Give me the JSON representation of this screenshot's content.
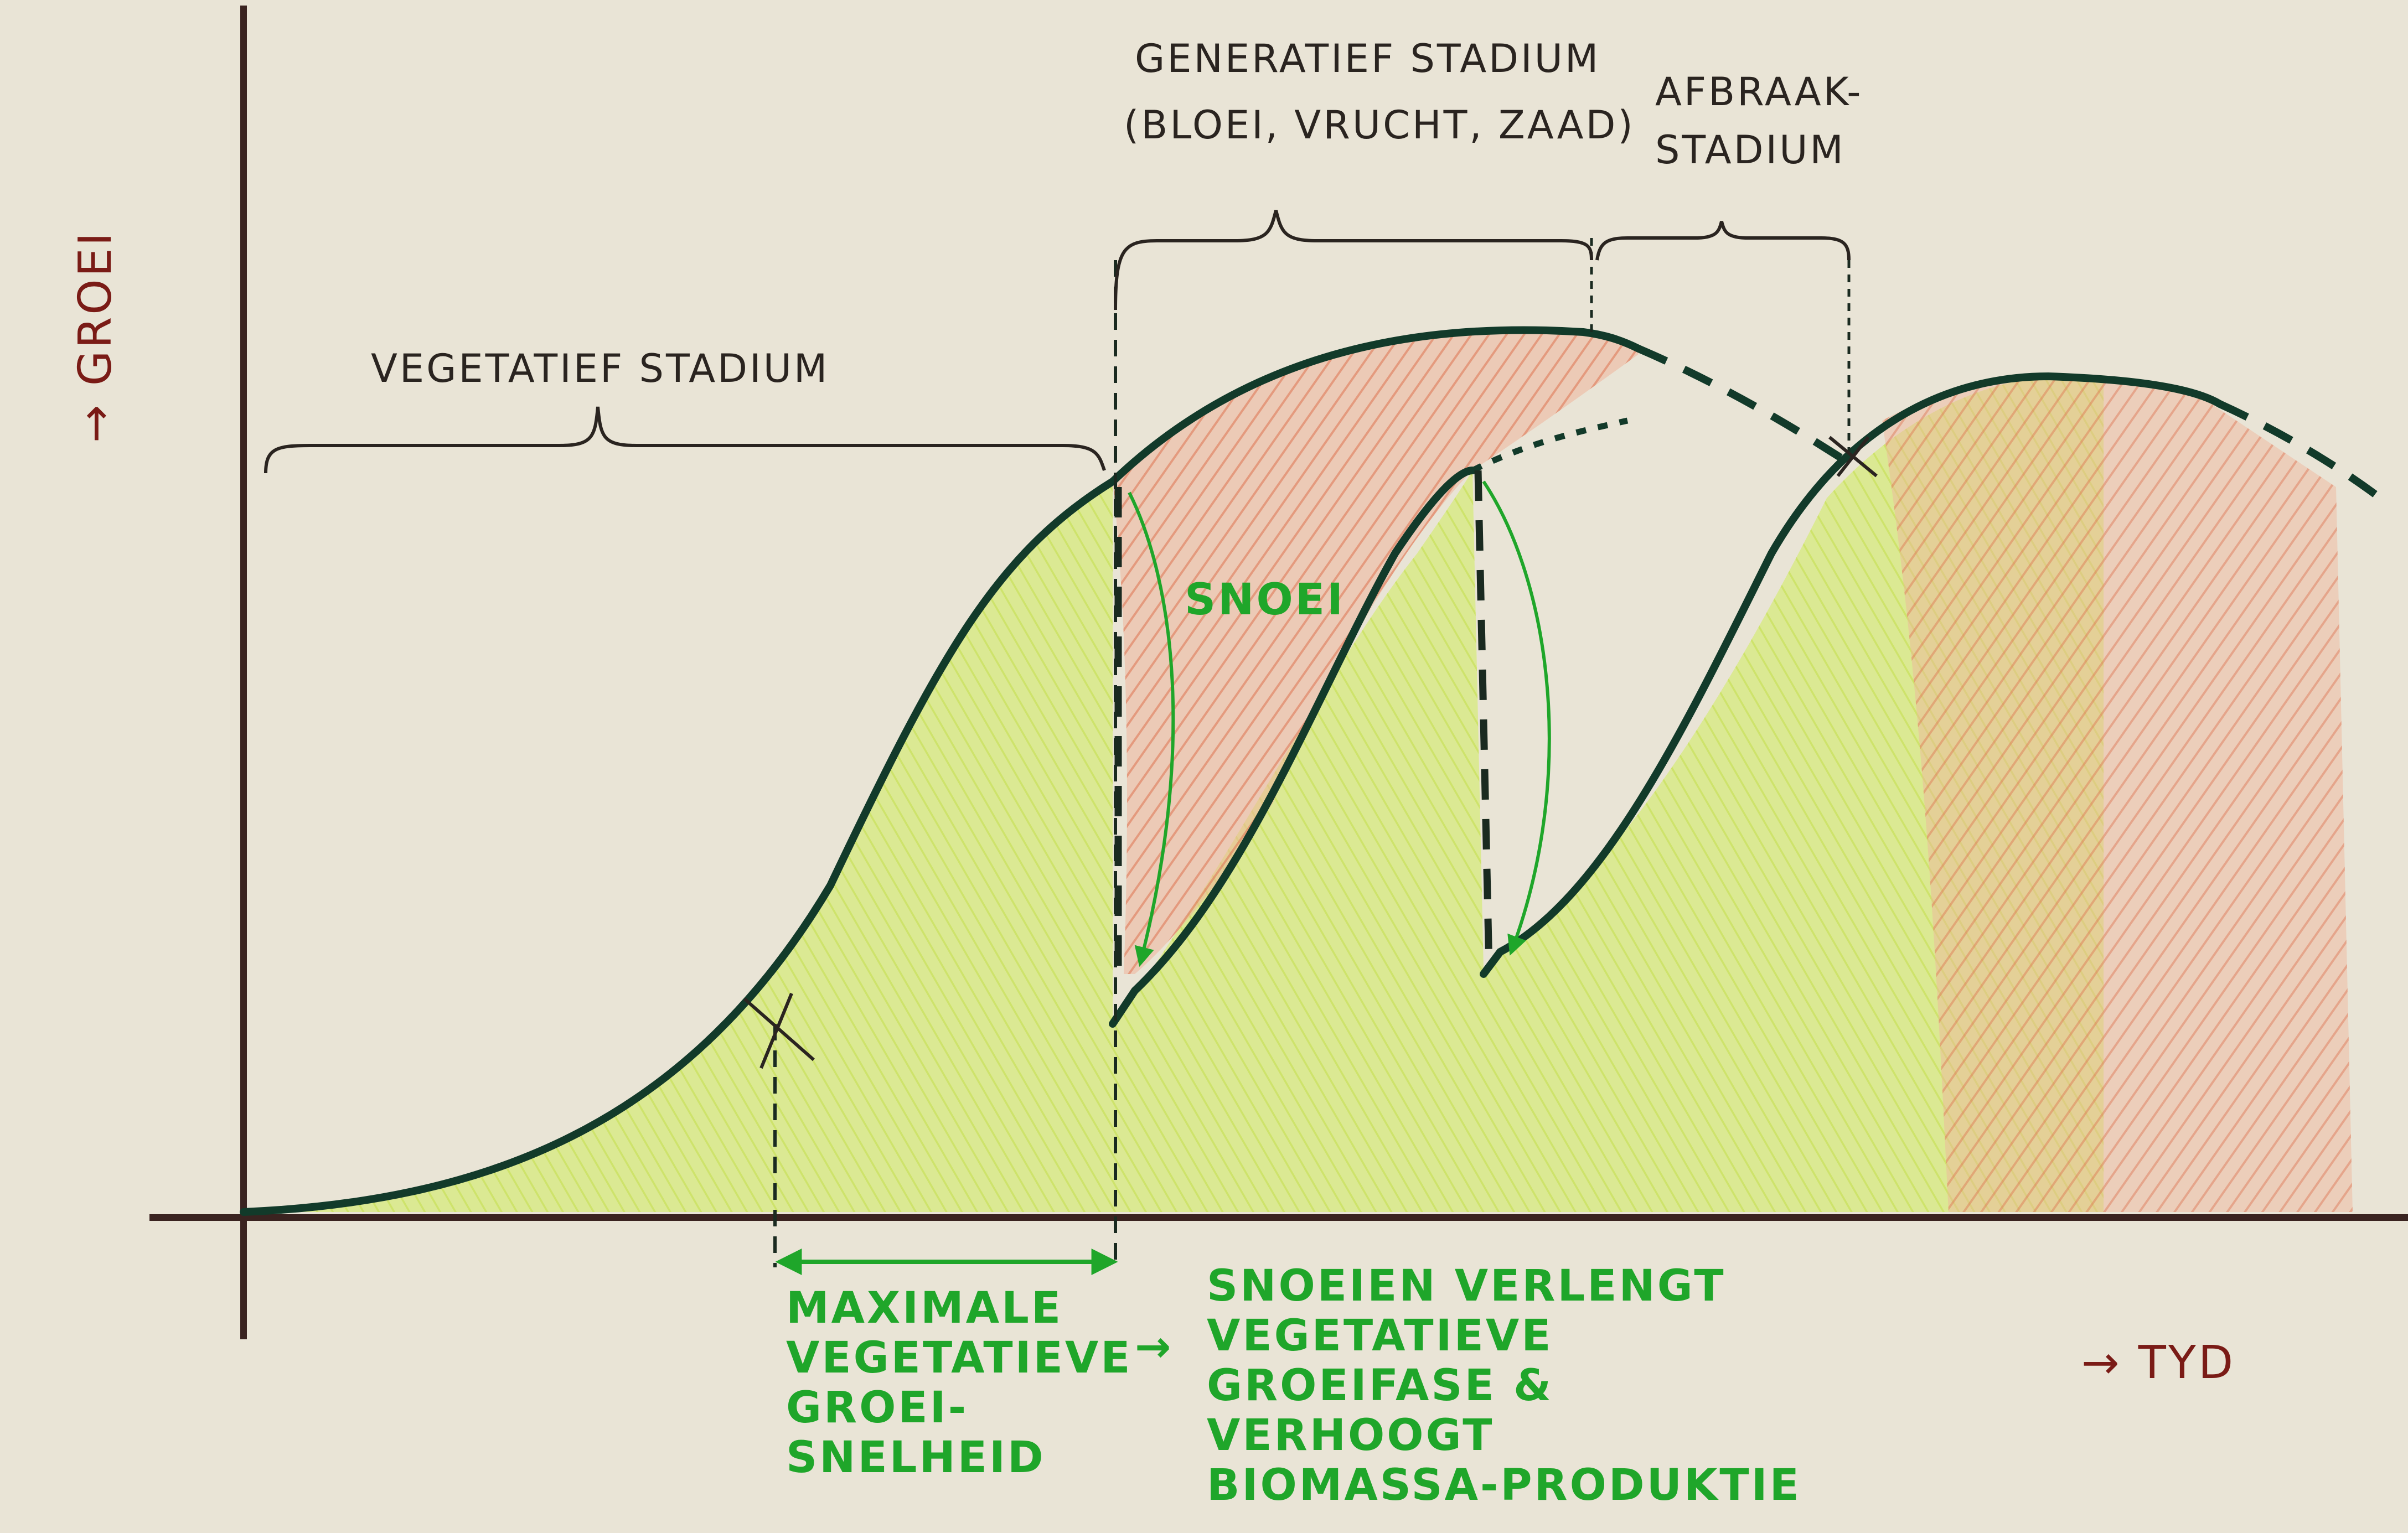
{
  "axes": {
    "y_label": "→ GROEI",
    "x_label": "→ TYD"
  },
  "stages": {
    "vegetative": "VEGETATIEF STADIUM",
    "generative_line1": "GENERATIEF STADIUM",
    "generative_line2": "(BLOEI, VRUCHT, ZAAD)",
    "decay_line1": "AFBRAAK-",
    "decay_line2": "STADIUM"
  },
  "annotations": {
    "pruning": "SNOEI",
    "max_growth": [
      "MAXIMALE",
      "VEGETATIEVE",
      "GROEI-",
      "SNELHEID"
    ],
    "arrow": "→",
    "conclusion": [
      "SNOEIEN VERLENGT",
      "VEGETATIEVE",
      "GROEIFASE &",
      "VERHOOGT",
      "BIOMASSA-PRODUKTIE"
    ]
  },
  "colors": {
    "paper": "#e9e4d6",
    "curve": "#123a2a",
    "ink": "#2a2420",
    "green_ink": "#1fa62a",
    "red_ink": "#7a1b16",
    "vegetative_fill": "#cfe56e",
    "generative_fill": "#e88a6a"
  }
}
